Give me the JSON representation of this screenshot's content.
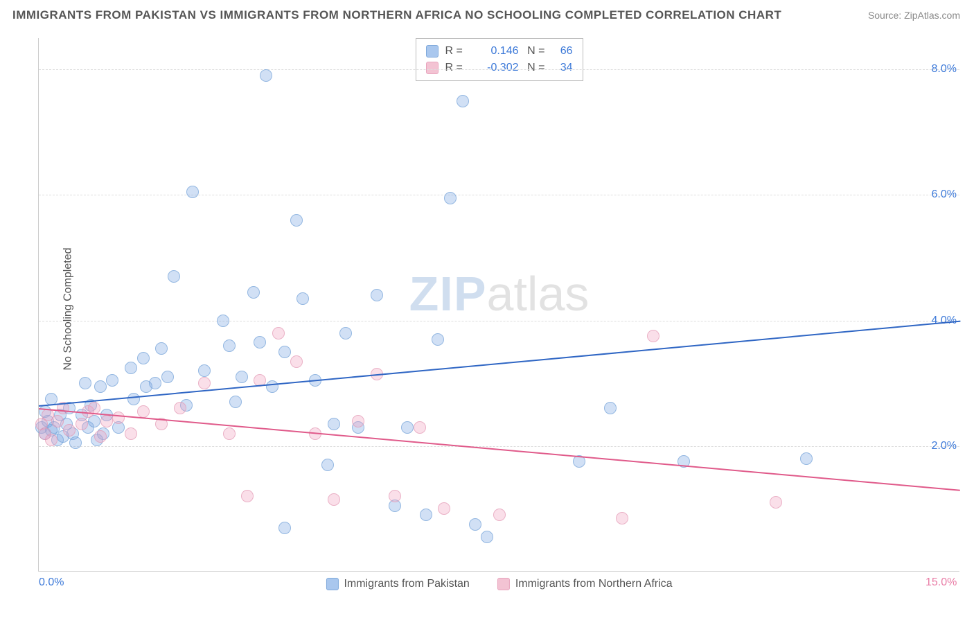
{
  "title": "IMMIGRANTS FROM PAKISTAN VS IMMIGRANTS FROM NORTHERN AFRICA NO SCHOOLING COMPLETED CORRELATION CHART",
  "source": "Source: ZipAtlas.com",
  "ylabel": "No Schooling Completed",
  "watermark": {
    "zip": "ZIP",
    "atlas": "atlas"
  },
  "chart": {
    "type": "scatter",
    "xlim": [
      0,
      15
    ],
    "ylim": [
      0,
      8.5
    ],
    "yticks": [
      {
        "v": 2.0,
        "label": "2.0%"
      },
      {
        "v": 4.0,
        "label": "4.0%"
      },
      {
        "v": 6.0,
        "label": "6.0%"
      },
      {
        "v": 8.0,
        "label": "8.0%"
      }
    ],
    "xticks": [
      {
        "v": 0,
        "label": "0.0%",
        "color": "#3b78d8"
      },
      {
        "v": 15,
        "label": "15.0%",
        "color": "#e97ba5"
      }
    ],
    "grid_color": "#e2e2e2",
    "background_color": "#ffffff",
    "marker_radius": 9,
    "series": [
      {
        "name": "Immigrants from Pakistan",
        "fill": "rgba(120,165,225,0.45)",
        "stroke": "#6f9fd8",
        "swatch_fill": "#a9c7ee",
        "swatch_stroke": "#7fa9db",
        "line_color": "#2f66c4",
        "R": "0.146",
        "N": "66",
        "stat_color": "#3b78d8",
        "trend": {
          "x1": 0,
          "y1": 2.65,
          "x2": 15,
          "y2": 4.0
        },
        "points": [
          [
            0.05,
            2.3
          ],
          [
            0.1,
            2.55
          ],
          [
            0.1,
            2.2
          ],
          [
            0.15,
            2.4
          ],
          [
            0.2,
            2.25
          ],
          [
            0.2,
            2.75
          ],
          [
            0.25,
            2.3
          ],
          [
            0.3,
            2.1
          ],
          [
            0.35,
            2.5
          ],
          [
            0.4,
            2.15
          ],
          [
            0.45,
            2.35
          ],
          [
            0.5,
            2.6
          ],
          [
            0.55,
            2.2
          ],
          [
            0.6,
            2.05
          ],
          [
            0.7,
            2.5
          ],
          [
            0.75,
            3.0
          ],
          [
            0.8,
            2.3
          ],
          [
            0.85,
            2.65
          ],
          [
            0.9,
            2.4
          ],
          [
            0.95,
            2.1
          ],
          [
            1.0,
            2.95
          ],
          [
            1.05,
            2.2
          ],
          [
            1.1,
            2.5
          ],
          [
            1.2,
            3.05
          ],
          [
            1.3,
            2.3
          ],
          [
            1.5,
            3.25
          ],
          [
            1.55,
            2.75
          ],
          [
            1.7,
            3.4
          ],
          [
            1.75,
            2.95
          ],
          [
            1.9,
            3.0
          ],
          [
            2.0,
            3.55
          ],
          [
            2.1,
            3.1
          ],
          [
            2.2,
            4.7
          ],
          [
            2.4,
            2.65
          ],
          [
            2.5,
            6.05
          ],
          [
            2.7,
            3.2
          ],
          [
            3.0,
            4.0
          ],
          [
            3.1,
            3.6
          ],
          [
            3.2,
            2.7
          ],
          [
            3.3,
            3.1
          ],
          [
            3.5,
            4.45
          ],
          [
            3.6,
            3.65
          ],
          [
            3.7,
            7.9
          ],
          [
            3.8,
            2.95
          ],
          [
            4.0,
            3.5
          ],
          [
            4.2,
            5.6
          ],
          [
            4.3,
            4.35
          ],
          [
            4.5,
            3.05
          ],
          [
            4.7,
            1.7
          ],
          [
            4.8,
            2.35
          ],
          [
            5.0,
            3.8
          ],
          [
            5.2,
            2.3
          ],
          [
            5.5,
            4.4
          ],
          [
            5.8,
            1.05
          ],
          [
            6.0,
            2.3
          ],
          [
            6.3,
            0.9
          ],
          [
            6.5,
            3.7
          ],
          [
            6.7,
            5.95
          ],
          [
            6.9,
            7.5
          ],
          [
            7.1,
            0.75
          ],
          [
            7.3,
            0.55
          ],
          [
            8.8,
            1.75
          ],
          [
            9.3,
            2.6
          ],
          [
            10.5,
            1.75
          ],
          [
            12.5,
            1.8
          ],
          [
            4.0,
            0.7
          ]
        ]
      },
      {
        "name": "Immigrants from Northern Africa",
        "fill": "rgba(240,160,190,0.45)",
        "stroke": "#e497b3",
        "swatch_fill": "#f3c3d3",
        "swatch_stroke": "#e8a4bd",
        "line_color": "#e05a8a",
        "R": "-0.302",
        "N": "34",
        "stat_color": "#3b78d8",
        "trend": {
          "x1": 0,
          "y1": 2.6,
          "x2": 15,
          "y2": 1.3
        },
        "points": [
          [
            0.05,
            2.35
          ],
          [
            0.1,
            2.2
          ],
          [
            0.15,
            2.5
          ],
          [
            0.2,
            2.1
          ],
          [
            0.3,
            2.4
          ],
          [
            0.4,
            2.6
          ],
          [
            0.5,
            2.25
          ],
          [
            0.7,
            2.35
          ],
          [
            0.8,
            2.55
          ],
          [
            0.9,
            2.6
          ],
          [
            1.0,
            2.15
          ],
          [
            1.1,
            2.4
          ],
          [
            1.3,
            2.45
          ],
          [
            1.5,
            2.2
          ],
          [
            1.7,
            2.55
          ],
          [
            2.0,
            2.35
          ],
          [
            2.3,
            2.6
          ],
          [
            2.7,
            3.0
          ],
          [
            3.1,
            2.2
          ],
          [
            3.4,
            1.2
          ],
          [
            3.6,
            3.05
          ],
          [
            3.9,
            3.8
          ],
          [
            4.2,
            3.35
          ],
          [
            4.5,
            2.2
          ],
          [
            4.8,
            1.15
          ],
          [
            5.2,
            2.4
          ],
          [
            5.5,
            3.15
          ],
          [
            5.8,
            1.2
          ],
          [
            6.2,
            2.3
          ],
          [
            6.6,
            1.0
          ],
          [
            7.5,
            0.9
          ],
          [
            9.5,
            0.85
          ],
          [
            10.0,
            3.75
          ],
          [
            12.0,
            1.1
          ]
        ]
      }
    ]
  },
  "legend": [
    {
      "label": "Immigrants from Pakistan"
    },
    {
      "label": "Immigrants from Northern Africa"
    }
  ]
}
